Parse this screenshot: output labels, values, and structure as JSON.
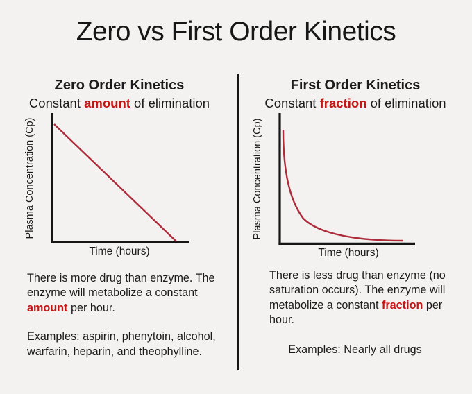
{
  "title": "Zero vs First Order Kinetics",
  "colors": {
    "background": "#f3f2f1",
    "text": "#1b1b1b",
    "accent_red": "#c41414",
    "curve_red": "#ae2b3a",
    "axis_black": "#161616"
  },
  "left": {
    "heading": "Zero Order Kinetics",
    "subtitle_runs": [
      {
        "text": "Constant ",
        "accent": false
      },
      {
        "text": "amount",
        "accent": true
      },
      {
        "text": " of elimination",
        "accent": false
      }
    ],
    "graph": {
      "ylabel": "Plasma Concentration (Cp)",
      "xlabel": "Time (hours)"
    },
    "body_runs": [
      {
        "text": "There is more drug than enzyme. The enzyme will metabolize a constant ",
        "accent": false
      },
      {
        "text": "amount",
        "accent": true
      },
      {
        "text": " per hour.",
        "accent": false
      }
    ],
    "examples": "Examples: aspirin, phenytoin, alcohol, warfarin, heparin, and theophylline."
  },
  "right": {
    "heading": "First Order Kinetics",
    "subtitle_runs": [
      {
        "text": "Constant ",
        "accent": false
      },
      {
        "text": "fraction",
        "accent": true
      },
      {
        "text": " of elimination",
        "accent": false
      }
    ],
    "graph": {
      "ylabel": "Plasma Concentration (Cp)",
      "xlabel": "Time (hours)"
    },
    "body_runs": [
      {
        "text": "There is less drug than enzyme (no saturation occurs). The enzyme will metabolize a constant ",
        "accent": false
      },
      {
        "text": "fraction",
        "accent": true
      },
      {
        "text": " per hour.",
        "accent": false
      }
    ],
    "examples": "Examples: Nearly all drugs"
  },
  "chart_data": [
    {
      "type": "line",
      "title": "Zero Order Kinetics",
      "xlabel": "Time (hours)",
      "ylabel": "Plasma Concentration (Cp)",
      "axis_ticks": "none",
      "grid": false,
      "legend": false,
      "series": [
        {
          "name": "plasma concentration",
          "shape": "linear-decline",
          "x_norm": [
            0.02,
            0.88
          ],
          "y_norm": [
            0.92,
            0.0
          ]
        }
      ]
    },
    {
      "type": "line",
      "title": "First Order Kinetics",
      "xlabel": "Time (hours)",
      "ylabel": "Plasma Concentration (Cp)",
      "axis_ticks": "none",
      "grid": false,
      "legend": false,
      "series": [
        {
          "name": "plasma concentration",
          "shape": "exponential-decay",
          "x_norm": [
            0.03,
            0.06,
            0.1,
            0.18,
            0.3,
            0.45,
            0.62,
            0.8,
            0.92
          ],
          "y_norm": [
            0.88,
            0.62,
            0.45,
            0.3,
            0.18,
            0.09,
            0.04,
            0.02,
            0.02
          ]
        }
      ]
    }
  ]
}
